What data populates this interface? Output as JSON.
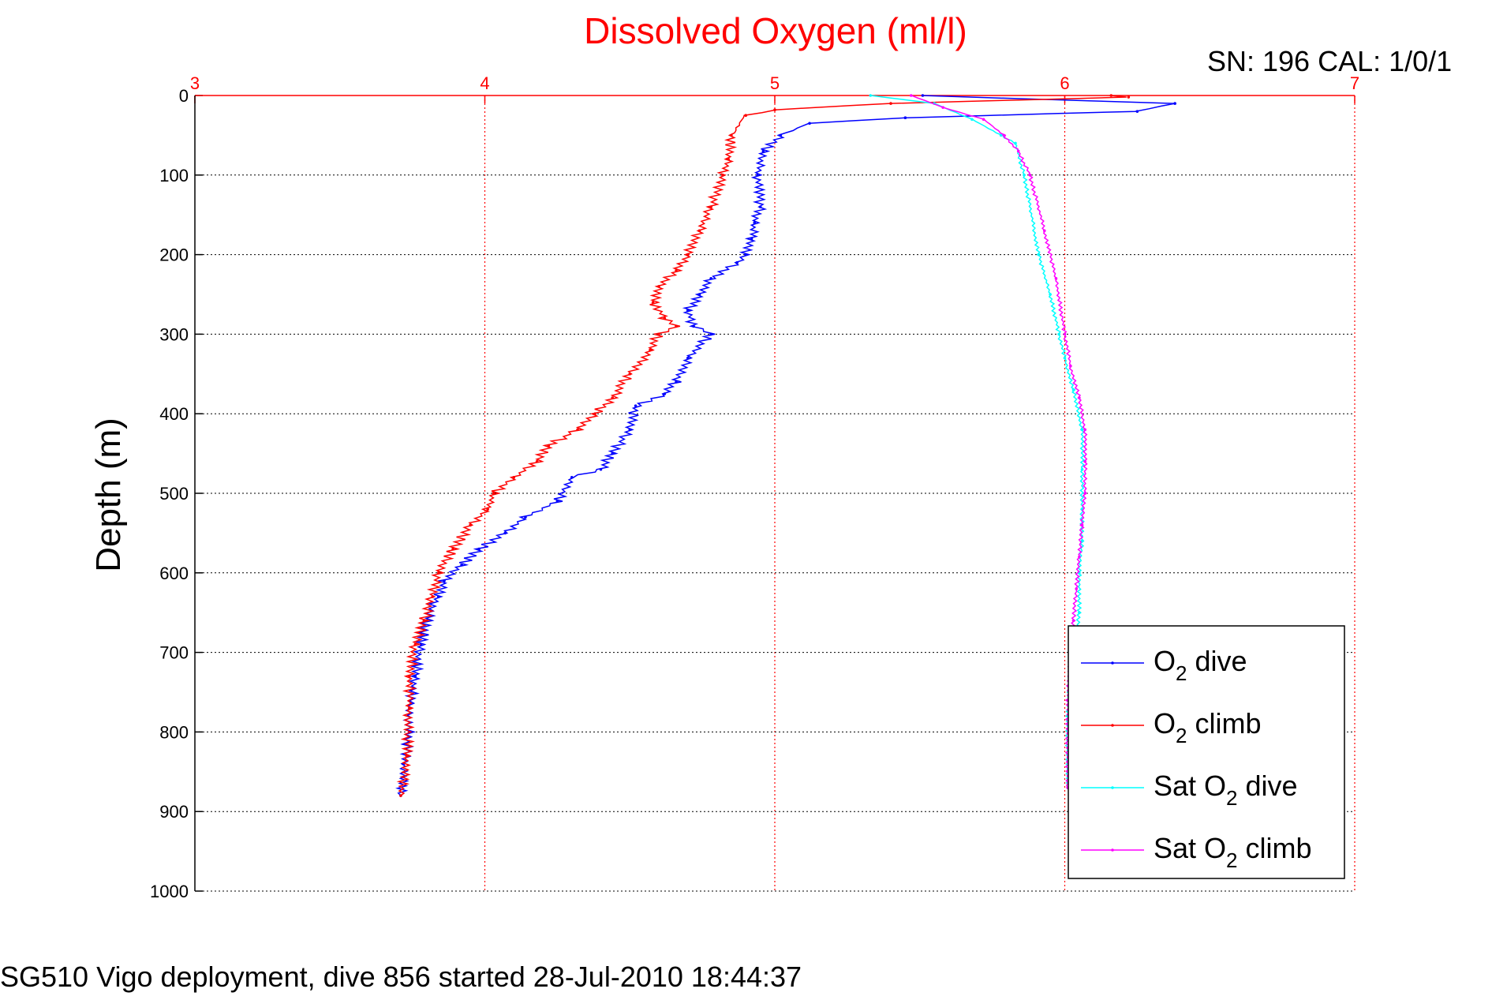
{
  "chart_data": {
    "type": "line",
    "title": "Dissolved Oxygen (ml/l)",
    "serial_text": "SN: 196  CAL: 1/0/1",
    "caption": "SG510 Vigo deployment, dive 856 started 28-Jul-2010 18:44:37",
    "ylabel": "Depth (m)",
    "xlabel": "",
    "xlim": [
      3,
      7
    ],
    "ylim": [
      0,
      1000
    ],
    "y_reversed": true,
    "x_axis_position": "top",
    "x_ticks": [
      3,
      4,
      5,
      6,
      7
    ],
    "y_ticks": [
      0,
      100,
      200,
      300,
      400,
      500,
      600,
      700,
      800,
      900,
      1000
    ],
    "grid": true,
    "legend_position": "bottom-right",
    "colors": {
      "title": "#ff0000",
      "x_axis": "#ff0000",
      "y_axis": "#000000",
      "x_grid": "#ff0000",
      "y_grid": "#000000"
    },
    "series": [
      {
        "name": "O2 dive",
        "legend_main": "O",
        "legend_sub": "2",
        "legend_suffix": " dive",
        "color": "#0000ff",
        "x": [
          5.51,
          6.38,
          6.25,
          5.45,
          5.12,
          5.02,
          4.96,
          4.94,
          4.95,
          4.93,
          4.92,
          4.9,
          4.87,
          4.78,
          4.74,
          4.7,
          4.72,
          4.78,
          4.7,
          4.66,
          4.62,
          4.52,
          4.5,
          4.44,
          4.4,
          4.3,
          4.25,
          4.14,
          4.07,
          3.98,
          3.92,
          3.86,
          3.84,
          3.8,
          3.78,
          3.76,
          3.74,
          3.74,
          3.72,
          3.71
        ],
        "y": [
          0,
          10,
          20,
          28,
          35,
          50,
          70,
          100,
          140,
          160,
          180,
          200,
          210,
          230,
          250,
          270,
          290,
          300,
          330,
          360,
          375,
          390,
          420,
          450,
          470,
          480,
          510,
          530,
          550,
          570,
          590,
          610,
          630,
          660,
          690,
          730,
          770,
          800,
          840,
          880
        ]
      },
      {
        "name": "O2 climb",
        "legend_main": "O",
        "legend_sub": "2",
        "legend_suffix": " climb",
        "color": "#ff0000",
        "x": [
          6.16,
          6.22,
          5.4,
          5.0,
          4.9,
          4.85,
          4.84,
          4.82,
          4.78,
          4.74,
          4.7,
          4.66,
          4.6,
          4.58,
          4.62,
          4.66,
          4.6,
          4.57,
          4.5,
          4.44,
          4.38,
          4.32,
          4.22,
          4.18,
          4.1,
          4.03,
          4.01,
          3.95,
          3.89,
          3.84,
          3.82,
          3.79,
          3.76,
          3.74,
          3.74,
          3.73,
          3.71
        ],
        "y": [
          0,
          2,
          10,
          18,
          25,
          50,
          80,
          100,
          140,
          170,
          200,
          220,
          240,
          260,
          280,
          290,
          300,
          320,
          350,
          380,
          400,
          420,
          440,
          460,
          480,
          500,
          520,
          540,
          570,
          600,
          630,
          660,
          690,
          730,
          770,
          830,
          880
        ]
      },
      {
        "name": "Sat O2 dive",
        "legend_main": "Sat O",
        "legend_sub": "2",
        "legend_suffix": " dive",
        "color": "#00ffff",
        "x": [
          5.33,
          5.55,
          5.68,
          5.78,
          5.83,
          5.86,
          5.91,
          5.95,
          5.98,
          6.0,
          6.03,
          6.06,
          6.06,
          6.06,
          6.06,
          6.05,
          6.05,
          6.04,
          6.02,
          6.01,
          6.01,
          6.01
        ],
        "y": [
          0,
          10,
          30,
          50,
          60,
          100,
          200,
          250,
          300,
          330,
          370,
          420,
          470,
          520,
          560,
          600,
          650,
          680,
          720,
          780,
          820,
          870
        ]
      },
      {
        "name": "Sat O2 climb",
        "legend_main": "Sat O",
        "legend_sub": "2",
        "legend_suffix": " climb",
        "color": "#ff00ff",
        "x": [
          5.47,
          5.58,
          5.72,
          5.79,
          5.84,
          5.88,
          5.93,
          5.97,
          6.0,
          6.02,
          6.05,
          6.07,
          6.07,
          6.07,
          6.06,
          6.05,
          6.04,
          6.03,
          6.02,
          6.01,
          6.01,
          6.01
        ],
        "y": [
          0,
          15,
          30,
          50,
          70,
          100,
          170,
          230,
          300,
          340,
          380,
          420,
          460,
          500,
          540,
          580,
          620,
          660,
          700,
          760,
          820,
          870
        ]
      }
    ]
  }
}
